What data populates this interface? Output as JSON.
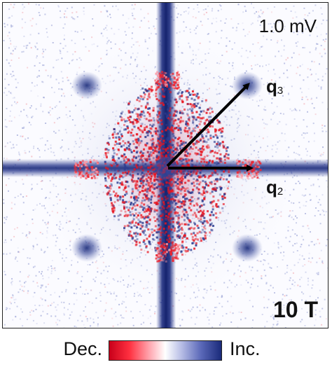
{
  "panel": {
    "voltage_label": "1.0 mV",
    "field_label": "10 T",
    "vector_labels": [
      {
        "letter": "q",
        "subscript": "3"
      },
      {
        "letter": "q",
        "subscript": "2"
      }
    ],
    "colors": {
      "increase": "#1a2a7a",
      "decrease": "#e0101e",
      "background": "#ffffff",
      "arrow": "#000000"
    }
  },
  "colorbar": {
    "left_label": "Dec.",
    "right_label": "Inc.",
    "colors": [
      "#c8001a",
      "#ff3040",
      "#ffb4bc",
      "#ffffff",
      "#b9bfe6",
      "#5a68b8",
      "#1a2a7a"
    ]
  }
}
